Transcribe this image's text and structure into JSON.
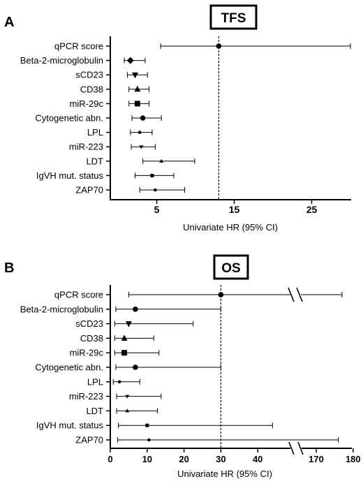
{
  "chart_data": [
    {
      "type": "forest",
      "panel": "A",
      "title": "TFS",
      "xlabel": "Univariate HR (95% CI)",
      "xlim": [
        -1,
        30
      ],
      "xticks": [
        "5",
        "15",
        "25"
      ],
      "xtick_values": [
        5,
        15,
        25
      ],
      "reference_line": 13,
      "grid": false,
      "rows": [
        {
          "label": "qPCR score",
          "marker": "circle",
          "hr": 13,
          "lo": 5.5,
          "hi": 30
        },
        {
          "label": "Beta-2-microglobulin",
          "marker": "diamond",
          "hr": 1.6,
          "lo": 0.8,
          "hi": 3.5
        },
        {
          "label": "sCD23",
          "marker": "triangle-down",
          "hr": 2.2,
          "lo": 1.2,
          "hi": 3.8
        },
        {
          "label": "CD38",
          "marker": "triangle-up",
          "hr": 2.5,
          "lo": 1.4,
          "hi": 4.0
        },
        {
          "label": "miR-29c",
          "marker": "square",
          "hr": 2.5,
          "lo": 1.4,
          "hi": 4.0
        },
        {
          "label": "Cytogenetic abn.",
          "marker": "circle",
          "hr": 3.2,
          "lo": 1.8,
          "hi": 5.6
        },
        {
          "label": "LPL",
          "marker": "dot",
          "hr": 2.8,
          "lo": 1.6,
          "hi": 4.4
        },
        {
          "label": "miR-223",
          "marker": "triangle-down-small",
          "hr": 3.0,
          "lo": 1.7,
          "hi": 4.8
        },
        {
          "label": "LDT",
          "marker": "triangle-up-small",
          "hr": 5.6,
          "lo": 3.2,
          "hi": 9.9
        },
        {
          "label": "IgVH mut. status",
          "marker": "square-small",
          "hr": 4.4,
          "lo": 2.2,
          "hi": 7.2
        },
        {
          "label": "ZAP70",
          "marker": "dot",
          "hr": 4.8,
          "lo": 2.8,
          "hi": 8.6
        }
      ]
    },
    {
      "type": "forest",
      "panel": "B",
      "title": "OS",
      "xlabel": "Univariate HR (95% CI)",
      "xlim": [
        0,
        180
      ],
      "axis_break": [
        50,
        160
      ],
      "xticks": [
        "0",
        "10",
        "20",
        "30",
        "40",
        "170",
        "180"
      ],
      "xtick_values": [
        0,
        10,
        20,
        30,
        40,
        170,
        180
      ],
      "reference_line": 30,
      "grid": false,
      "rows": [
        {
          "label": "qPCR score",
          "marker": "circle",
          "hr": 30,
          "lo": 5,
          "hi": 177
        },
        {
          "label": "Beta-2-microglobulin",
          "marker": "circle",
          "hr": 6.8,
          "lo": 1.5,
          "hi": 30
        },
        {
          "label": "sCD23",
          "marker": "triangle-down",
          "hr": 5,
          "lo": 1.2,
          "hi": 22.5
        },
        {
          "label": "CD38",
          "marker": "triangle-up",
          "hr": 3.8,
          "lo": 1.2,
          "hi": 11.8
        },
        {
          "label": "miR-29c",
          "marker": "square",
          "hr": 3.8,
          "lo": 1.2,
          "hi": 13.2
        },
        {
          "label": "Cytogenetic abn.",
          "marker": "circle",
          "hr": 6.8,
          "lo": 1.5,
          "hi": 30
        },
        {
          "label": "LPL",
          "marker": "dot",
          "hr": 2.5,
          "lo": 0.8,
          "hi": 8
        },
        {
          "label": "miR-223",
          "marker": "triangle-down-small",
          "hr": 4.6,
          "lo": 1.7,
          "hi": 13.8
        },
        {
          "label": "LDT",
          "marker": "triangle-up-small",
          "hr": 4.6,
          "lo": 1.7,
          "hi": 12.8
        },
        {
          "label": "IgVH mut. status",
          "marker": "square-small",
          "hr": 10,
          "lo": 2.2,
          "hi": 44
        },
        {
          "label": "ZAP70",
          "marker": "dot",
          "hr": 10.5,
          "lo": 2.0,
          "hi": 176
        }
      ]
    }
  ]
}
